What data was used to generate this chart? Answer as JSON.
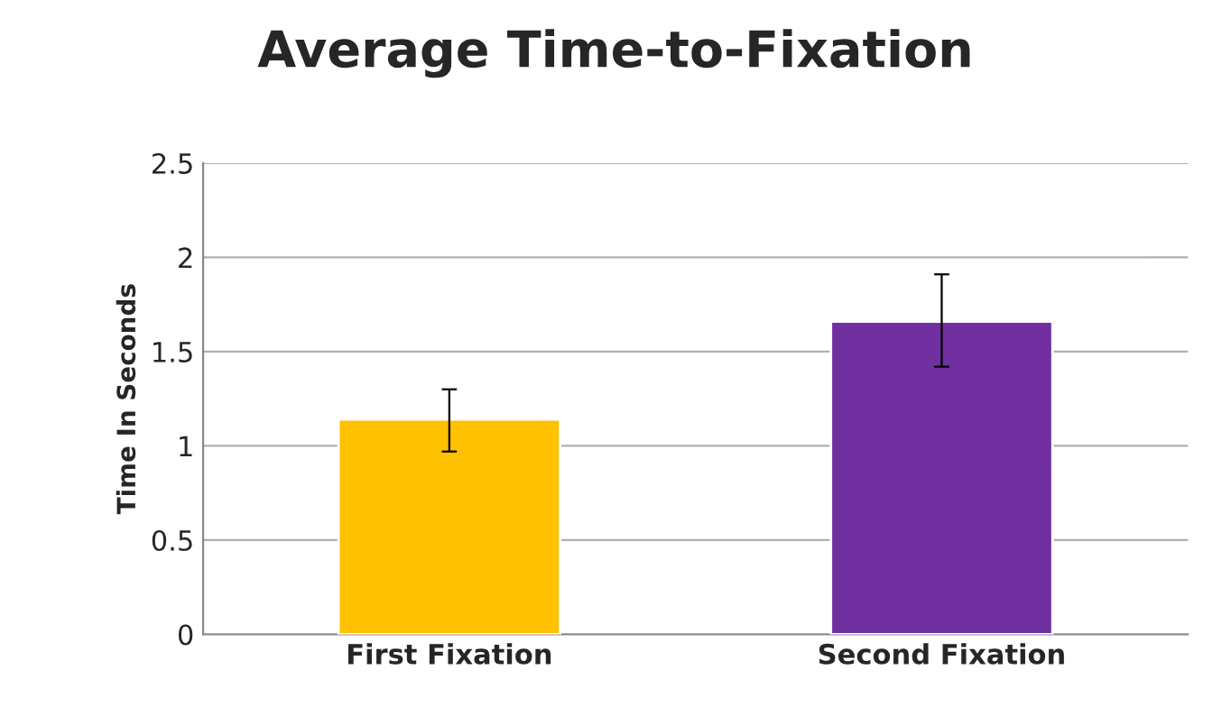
{
  "chart_data": {
    "type": "bar",
    "title": "Average Time-to-Fixation",
    "ylabel": "Time In Seconds",
    "categories": [
      "First Fixation",
      "Second Fixation"
    ],
    "values": [
      1.14,
      1.66
    ],
    "colors": [
      "#ffc000",
      "#7030a0"
    ],
    "errors": [
      [
        0.97,
        1.3
      ],
      [
        1.42,
        1.91
      ]
    ],
    "ylim": [
      0,
      2.5
    ],
    "yticks": [
      0,
      0.5,
      1,
      1.5,
      2,
      2.5
    ],
    "grid": "y",
    "legend": false
  }
}
